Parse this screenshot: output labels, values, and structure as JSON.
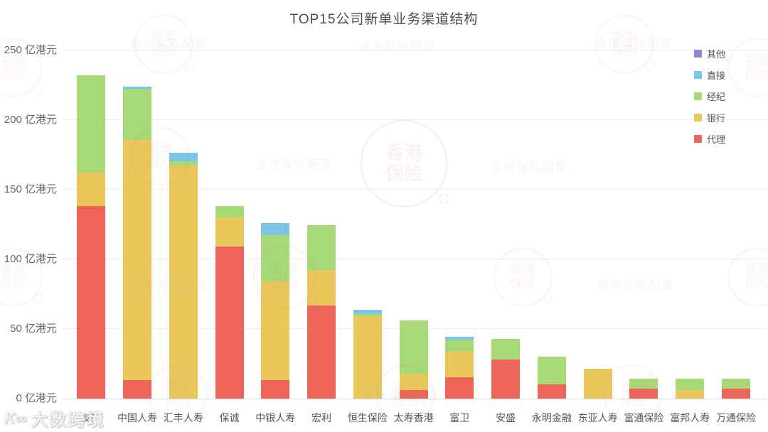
{
  "page": {
    "background": "#ffffff"
  },
  "chart_data": {
    "type": "bar",
    "stacked": true,
    "title": "TOP15公司新单业务渠道结构",
    "unit": "亿港元",
    "grid": true,
    "legend_position": "right-inside",
    "ylim": [
      0,
      250
    ],
    "y_ticks": [
      {
        "value": 0,
        "label": "0 亿港元"
      },
      {
        "value": 50,
        "label": "50 亿港元"
      },
      {
        "value": 100,
        "label": "100 亿港元"
      },
      {
        "value": 150,
        "label": "150 亿港元"
      },
      {
        "value": 200,
        "label": "200 亿港元"
      },
      {
        "value": 250,
        "label": "250 亿港元"
      }
    ],
    "categories": [
      "友邦",
      "中国人寿",
      "汇丰人寿",
      "保诚",
      "中银人寿",
      "宏利",
      "恒生保险",
      "太寿香港",
      "富卫",
      "安盛",
      "永明金融",
      "东亚人寿",
      "富通保险",
      "富邦人寿",
      "万通保险"
    ],
    "series": [
      {
        "name": "代理",
        "color": "#ee6459",
        "values": [
          138,
          13.5,
          0,
          109,
          13,
          67,
          0,
          6,
          15.5,
          28,
          10,
          0,
          7,
          0,
          7
        ]
      },
      {
        "name": "银行",
        "color": "#e9c75b",
        "values": [
          24,
          172,
          167,
          21,
          71,
          25.5,
          59,
          12,
          18,
          0,
          0,
          21.5,
          0,
          6,
          0
        ]
      },
      {
        "name": "经纪",
        "color": "#a7d977",
        "values": [
          70,
          36.5,
          3,
          8,
          33,
          32,
          1.5,
          38,
          9,
          15,
          20,
          0,
          7.5,
          8.5,
          7.5
        ]
      },
      {
        "name": "直接",
        "color": "#7cc5e6",
        "values": [
          0,
          2,
          6.5,
          0,
          9,
          0,
          3,
          0,
          2,
          0,
          0,
          0,
          0,
          0,
          0
        ]
      },
      {
        "name": "其他",
        "color": "#9187d8",
        "values": [
          0,
          0,
          0,
          0,
          0,
          0,
          0,
          0,
          0,
          0,
          0,
          0,
          0,
          0,
          0
        ]
      }
    ],
    "legend_order_top_to_bottom": [
      "其他",
      "直接",
      "经纪",
      "银行",
      "代理"
    ]
  },
  "watermarks": {
    "stamp_line1": "香港",
    "stamp_line2": "保险",
    "faint_text": "香港保险配置",
    "footer_logo": "K∞",
    "footer_text": "大数跨境"
  }
}
